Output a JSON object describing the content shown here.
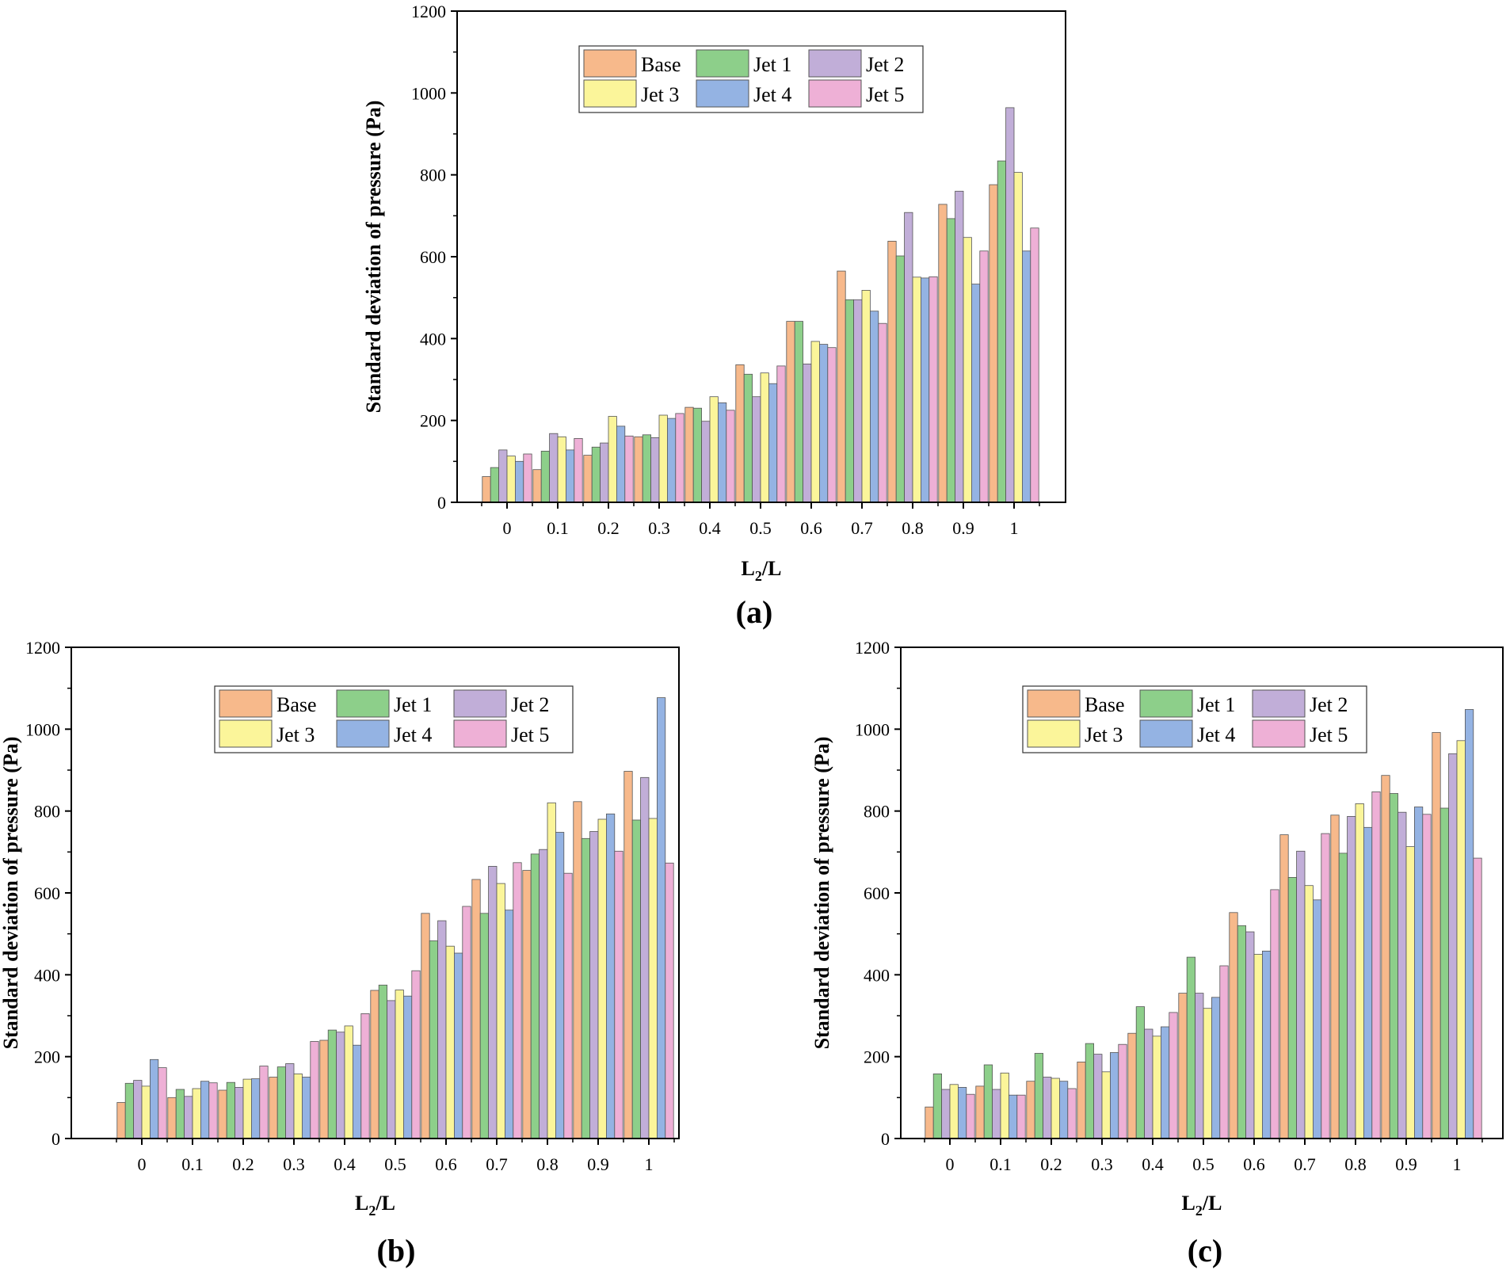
{
  "figure": {
    "colors": {
      "Base": "#f7b98b",
      "Jet 1": "#8dcf8a",
      "Jet 2": "#c1aed8",
      "Jet 3": "#fbf59a",
      "Jet 4": "#94b3e3",
      "Jet 5": "#eeb0d6"
    }
  },
  "chart_data": [
    {
      "type": "bar",
      "panel_label": "(a)",
      "title": "",
      "xlabel": "L2/L",
      "xlabel_main": "L",
      "xlabel_sub": "2",
      "xlabel_rest": "/L",
      "ylabel": "Standard deviation of pressure (Pa)",
      "ylim": [
        0,
        1200
      ],
      "yticks": [
        "0",
        "200",
        "400",
        "600",
        "800",
        "1000",
        "1200"
      ],
      "categories": [
        "0",
        "0.1",
        "0.2",
        "0.3",
        "0.4",
        "0.5",
        "0.6",
        "0.7",
        "0.8",
        "0.9",
        "1"
      ],
      "legend": [
        "Base",
        "Jet 1",
        "Jet 2",
        "Jet 3",
        "Jet 4",
        "Jet 5"
      ],
      "series": [
        {
          "name": "Base",
          "values": [
            63,
            80,
            115,
            160,
            232,
            336,
            442,
            565,
            638,
            728,
            776
          ]
        },
        {
          "name": "Jet 1",
          "values": [
            85,
            125,
            135,
            165,
            230,
            313,
            442,
            495,
            602,
            693,
            834
          ]
        },
        {
          "name": "Jet 2",
          "values": [
            128,
            168,
            145,
            158,
            198,
            258,
            338,
            495,
            708,
            760,
            964
          ]
        },
        {
          "name": "Jet 3",
          "values": [
            113,
            160,
            210,
            213,
            258,
            316,
            393,
            518,
            550,
            647,
            806
          ]
        },
        {
          "name": "Jet 4",
          "values": [
            100,
            128,
            186,
            205,
            243,
            290,
            386,
            467,
            548,
            533,
            614
          ]
        },
        {
          "name": "Jet 5",
          "values": [
            118,
            156,
            162,
            217,
            225,
            333,
            378,
            437,
            551,
            614,
            670
          ]
        }
      ]
    },
    {
      "type": "bar",
      "panel_label": "(b)",
      "title": "",
      "xlabel": "L2/L",
      "xlabel_main": "L",
      "xlabel_sub": "2",
      "xlabel_rest": "/L",
      "ylabel": "Standard deviation of pressure (Pa)",
      "ylim": [
        0,
        1200
      ],
      "yticks": [
        "0",
        "200",
        "400",
        "600",
        "800",
        "1000",
        "1200"
      ],
      "categories": [
        "0",
        "0.1",
        "0.2",
        "0.3",
        "0.4",
        "0.5",
        "0.6",
        "0.7",
        "0.8",
        "0.9",
        "1"
      ],
      "legend": [
        "Base",
        "Jet 1",
        "Jet 2",
        "Jet 3",
        "Jet 4",
        "Jet 5"
      ],
      "series": [
        {
          "name": "Base",
          "values": [
            88,
            100,
            118,
            150,
            240,
            362,
            550,
            633,
            655,
            823,
            897
          ]
        },
        {
          "name": "Jet 1",
          "values": [
            135,
            120,
            137,
            175,
            265,
            375,
            483,
            550,
            695,
            733,
            778
          ]
        },
        {
          "name": "Jet 2",
          "values": [
            142,
            103,
            125,
            183,
            260,
            337,
            532,
            665,
            706,
            750,
            882
          ]
        },
        {
          "name": "Jet 3",
          "values": [
            128,
            122,
            145,
            158,
            275,
            363,
            470,
            623,
            820,
            780,
            782
          ]
        },
        {
          "name": "Jet 4",
          "values": [
            193,
            140,
            146,
            150,
            228,
            348,
            453,
            558,
            748,
            793,
            1077
          ]
        },
        {
          "name": "Jet 5",
          "values": [
            173,
            136,
            177,
            237,
            305,
            410,
            567,
            674,
            648,
            702,
            673
          ]
        }
      ]
    },
    {
      "type": "bar",
      "panel_label": "(c)",
      "title": "",
      "xlabel": "L2/L",
      "xlabel_main": "L",
      "xlabel_sub": "2",
      "xlabel_rest": "/L",
      "ylabel": "Standard deviation of pressure (Pa)",
      "ylim": [
        0,
        1200
      ],
      "yticks": [
        "0",
        "200",
        "400",
        "600",
        "800",
        "1000",
        "1200"
      ],
      "categories": [
        "0",
        "0.1",
        "0.2",
        "0.3",
        "0.4",
        "0.5",
        "0.6",
        "0.7",
        "0.8",
        "0.9",
        "1"
      ],
      "legend": [
        "Base",
        "Jet 1",
        "Jet 2",
        "Jet 3",
        "Jet 4",
        "Jet 5"
      ],
      "series": [
        {
          "name": "Base",
          "values": [
            77,
            128,
            140,
            187,
            257,
            355,
            552,
            742,
            790,
            887,
            992
          ]
        },
        {
          "name": "Jet 1",
          "values": [
            158,
            180,
            208,
            232,
            322,
            443,
            520,
            638,
            697,
            843,
            807
          ]
        },
        {
          "name": "Jet 2",
          "values": [
            120,
            120,
            150,
            206,
            267,
            355,
            505,
            702,
            787,
            797,
            940
          ]
        },
        {
          "name": "Jet 3",
          "values": [
            132,
            160,
            147,
            163,
            250,
            318,
            450,
            618,
            818,
            713,
            972
          ]
        },
        {
          "name": "Jet 4",
          "values": [
            125,
            106,
            140,
            210,
            273,
            345,
            458,
            583,
            760,
            810,
            1048
          ]
        },
        {
          "name": "Jet 5",
          "values": [
            108,
            106,
            122,
            230,
            308,
            422,
            608,
            745,
            847,
            792,
            685
          ]
        }
      ]
    }
  ]
}
